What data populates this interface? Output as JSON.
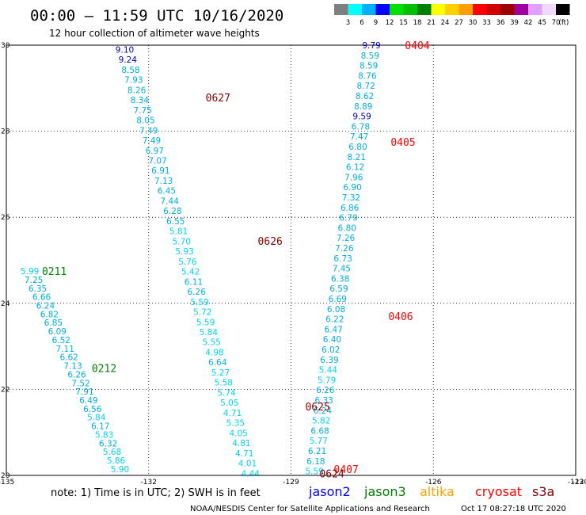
{
  "header": {
    "title": "00:00 – 11:59 UTC 10/16/2020",
    "subtitle": "12 hour collection of altimeter wave heights"
  },
  "color_scale": {
    "labels": [
      "3",
      "6",
      "9",
      "12",
      "15",
      "18",
      "21",
      "24",
      "27",
      "30",
      "33",
      "36",
      "39",
      "42",
      "45",
      "70"
    ],
    "unit": "(ft)",
    "colors": [
      "#7f7f7f",
      "#00ffff",
      "#00b0ff",
      "#0000ff",
      "#00e000",
      "#00c000",
      "#008000",
      "#ffff00",
      "#ffd000",
      "#ffa000",
      "#ff0000",
      "#d00000",
      "#a00000",
      "#a000a0",
      "#e0a0ff",
      "#f0d8ff",
      "#000000"
    ]
  },
  "footer": {
    "note": "note: 1) Time is in UTC; 2) SWH is in feet",
    "credit": "NOAA/NESDIS Center for Satellite Applications and Research",
    "generated": "Oct 17 08:27:18 UTC 2020",
    "legend": [
      {
        "name": "jason2",
        "color": "#0000ff"
      },
      {
        "name": "jason3",
        "color": "#008000"
      },
      {
        "name": "altika",
        "color": "#ffa000"
      },
      {
        "name": "cryosat",
        "color": "#ff0000"
      },
      {
        "name": "s3a",
        "color": "#800000"
      }
    ]
  },
  "chart_data": {
    "type": "scatter",
    "xlim": [
      -135,
      -123
    ],
    "ylim": [
      20,
      30
    ],
    "x_ticks": [
      "-135",
      "-132",
      "-129",
      "-126",
      "-123",
      "-120"
    ],
    "y_ticks": [
      {
        "value": 30,
        "label": "30"
      },
      {
        "value": 28,
        "label": "28"
      },
      {
        "value": 26,
        "label": "26"
      },
      {
        "value": 24,
        "label": "24"
      },
      {
        "value": 22,
        "label": "22"
      },
      {
        "value": 20,
        "label": "20"
      }
    ],
    "grid": true,
    "time_labels": [
      {
        "text": "0404",
        "lon": -126.6,
        "lat": 30.0,
        "color": "#ff0000"
      },
      {
        "text": "0627",
        "lon": -130.8,
        "lat": 28.78,
        "color": "#800000"
      },
      {
        "text": "0405",
        "lon": -126.9,
        "lat": 27.75,
        "color": "#ff0000"
      },
      {
        "text": "0626",
        "lon": -129.7,
        "lat": 25.45,
        "color": "#800000"
      },
      {
        "text": "0211",
        "lon": -134.25,
        "lat": 24.75,
        "color": "#008000"
      },
      {
        "text": "0406",
        "lon": -126.95,
        "lat": 23.7,
        "color": "#ff0000"
      },
      {
        "text": "0212",
        "lon": -133.2,
        "lat": 22.5,
        "color": "#008000"
      },
      {
        "text": "0625",
        "lon": -128.7,
        "lat": 21.6,
        "color": "#800000"
      },
      {
        "text": "0407",
        "lon": -128.1,
        "lat": 20.15,
        "color": "#ff0000"
      },
      {
        "text": "0624",
        "lon": -128.4,
        "lat": 20.05,
        "color": "#800000"
      }
    ],
    "tracks": [
      {
        "name": "",
        "start": [
          -132.7,
          29.9
        ],
        "end": [
          -130.05,
          20.05
        ],
        "values": [
          "9.10",
          "9.24",
          "8.58",
          "7.93",
          "8.26",
          "8.34",
          "7.75",
          "8.05",
          "7.49",
          "7.49",
          "6.97",
          "7.07",
          "6.91",
          "7.13",
          "6.45",
          "7.44",
          "6.28",
          "6.55",
          "5.81",
          "5.70",
          "5.93",
          "5.76",
          "5.42",
          "6.11",
          "6.26",
          "5.59",
          "5.72",
          "5.59",
          "5.84",
          "5.55",
          "4.98",
          "6.64",
          "5.27",
          "5.58",
          "5.74",
          "5.05",
          "4.71",
          "5.35",
          "4.05",
          "4.81",
          "4.71",
          "4.01",
          "4.44"
        ]
      },
      {
        "name": "",
        "start": [
          -127.5,
          30.0
        ],
        "end": [
          -128.7,
          20.1
        ],
        "values": [
          "9.79",
          "8.59",
          "8.59",
          "8.76",
          "8.72",
          "8.62",
          "8.89",
          "9.59",
          "6.78",
          "7.47",
          "6.80",
          "8.21",
          "6.12",
          "7.96",
          "6.90",
          "7.32",
          "6.86",
          "6.79",
          "6.80",
          "7.26",
          "7.26",
          "6.73",
          "7.45",
          "6.38",
          "6.59",
          "6.69",
          "6.08",
          "6.22",
          "6.47",
          "6.40",
          "6.02",
          "6.39",
          "5.44",
          "5.79",
          "6.26",
          "6.33",
          "6.24",
          "5.82",
          "6.68",
          "5.77",
          "6.21",
          "6.18",
          "5.59"
        ]
      },
      {
        "name": "",
        "start": [
          -134.7,
          24.75
        ],
        "end": [
          -132.8,
          20.15
        ],
        "values": [
          "5.99",
          "7.25",
          "6.35",
          "6.66",
          "6.24",
          "6.82",
          "6.85",
          "6.09",
          "6.52",
          "7.11",
          "6.62",
          "7.13",
          "6.26",
          "7.52",
          "7.91",
          "6.49",
          "6.56",
          "5.84",
          "6.17",
          "5.83",
          "6.32",
          "5.68",
          "5.86",
          "5.90"
        ]
      }
    ]
  }
}
